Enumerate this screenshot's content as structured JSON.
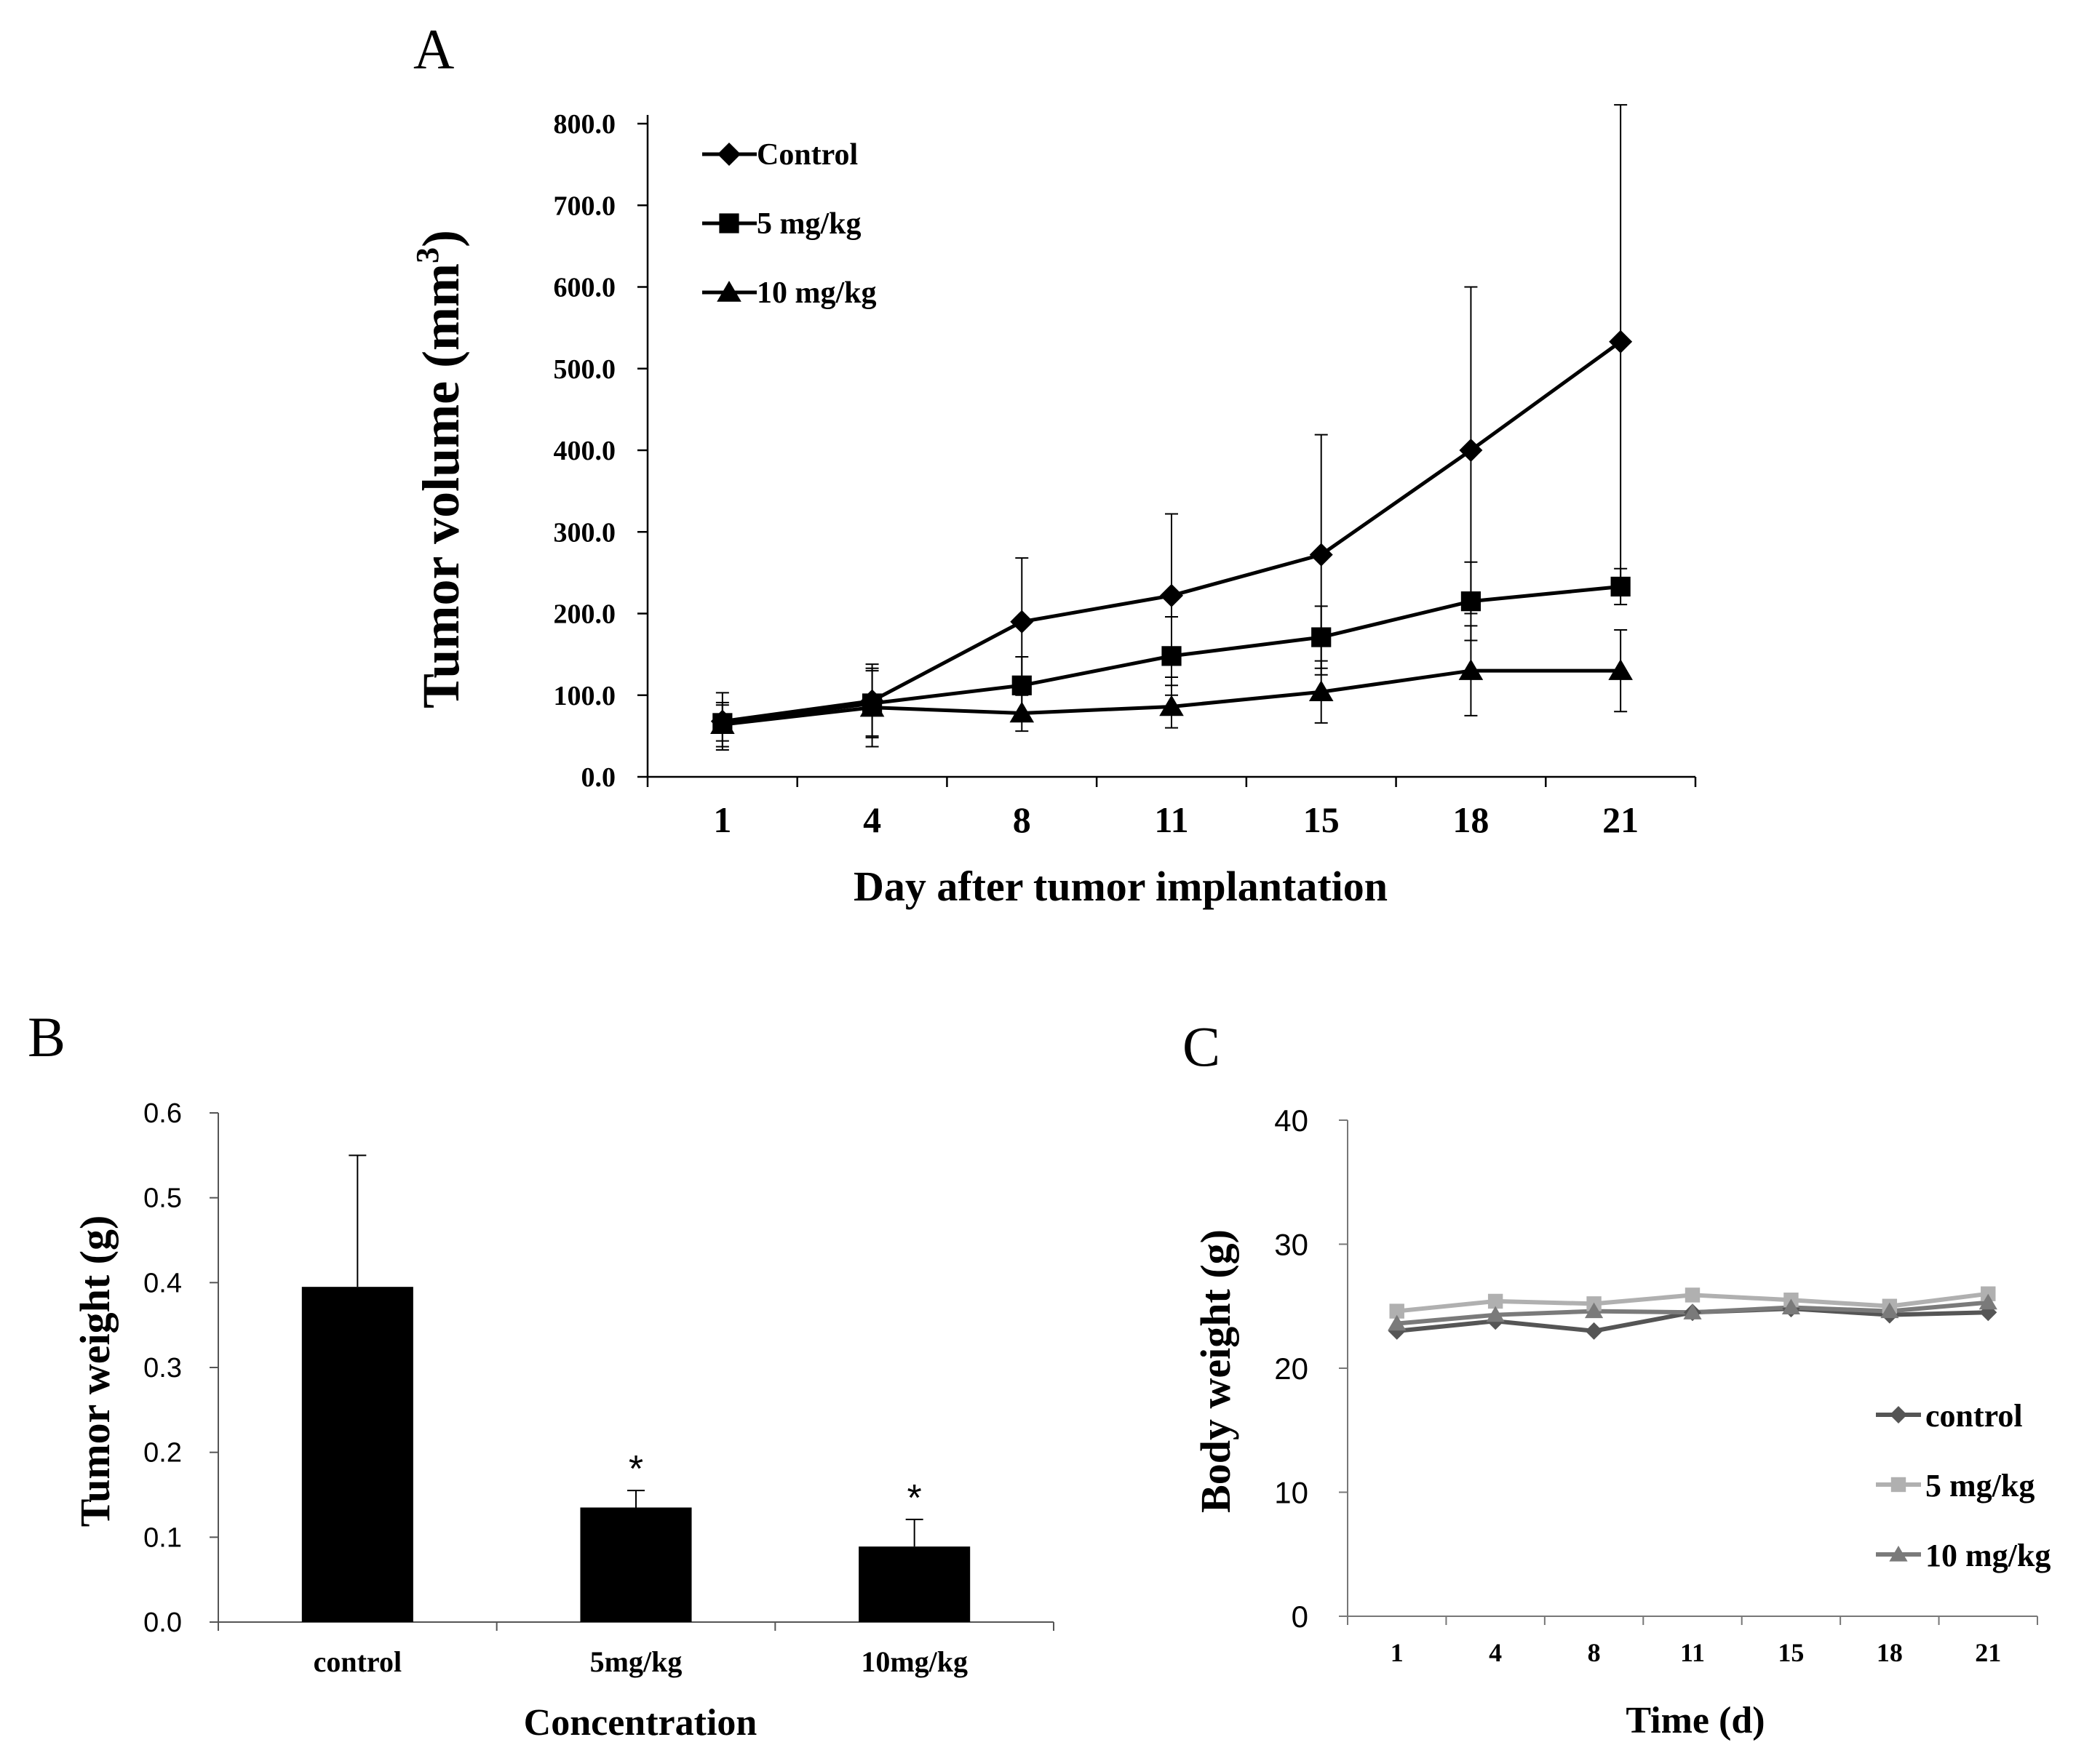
{
  "chart_data": [
    {
      "id": "A",
      "panel_label": "A",
      "type": "line",
      "xlabel": "Day after tumor implantation",
      "ylabel": "Tumor volume (mm",
      "ylabel_sup": "3",
      "ylabel_close": ")",
      "categories": [
        "1",
        "4",
        "8",
        "11",
        "15",
        "18",
        "21"
      ],
      "ylim": [
        0,
        800
      ],
      "yticks": [
        0,
        100,
        200,
        300,
        400,
        500,
        600,
        700,
        800
      ],
      "ytick_labels": [
        "0.0",
        "100.0",
        "200.0",
        "300.0",
        "400.0",
        "500.0",
        "600.0",
        "700.0",
        "800.0"
      ],
      "legend_position": "top-left",
      "series": [
        {
          "name": "Control",
          "marker": "diamond",
          "color": "#000000",
          "values": [
            68,
            93,
            190,
            222,
            272,
            400,
            533
          ],
          "errors": [
            35,
            45,
            78,
            100,
            147,
            200,
            290
          ]
        },
        {
          "name": "5 mg/kg",
          "marker": "square",
          "color": "#000000",
          "values": [
            66,
            90,
            112,
            148,
            171,
            215,
            233
          ],
          "errors": [
            22,
            40,
            35,
            48,
            38,
            48,
            22
          ]
        },
        {
          "name": "10 mg/kg",
          "marker": "triangle",
          "color": "#000000",
          "values": [
            64,
            85,
            78,
            86,
            104,
            130,
            130
          ],
          "errors": [
            27,
            48,
            22,
            26,
            38,
            55,
            50
          ]
        }
      ]
    },
    {
      "id": "B",
      "panel_label": "B",
      "type": "bar",
      "xlabel": "Concentration",
      "ylabel": "Tumor weight (g)",
      "categories": [
        "control",
        "5mg/kg",
        "10mg/kg"
      ],
      "values": [
        0.395,
        0.135,
        0.089
      ],
      "errors": [
        0.155,
        0.02,
        0.032
      ],
      "annotations": [
        "",
        "*",
        "*"
      ],
      "ylim": [
        0,
        0.6
      ],
      "yticks": [
        0,
        0.1,
        0.2,
        0.3,
        0.4,
        0.5,
        0.6
      ],
      "ytick_labels": [
        "0.0",
        "0.1",
        "0.2",
        "0.3",
        "0.4",
        "0.5",
        "0.6"
      ],
      "color": "#000000"
    },
    {
      "id": "C",
      "panel_label": "C",
      "type": "line",
      "xlabel": "Time (d)",
      "ylabel": "Body weight (g)",
      "categories": [
        "1",
        "4",
        "8",
        "11",
        "15",
        "18",
        "21"
      ],
      "ylim": [
        0,
        40
      ],
      "yticks": [
        0,
        10,
        20,
        30,
        40
      ],
      "ytick_labels": [
        "0",
        "10",
        "20",
        "30",
        "40"
      ],
      "legend_position": "bottom-right",
      "series": [
        {
          "name": "control",
          "marker": "diamond",
          "color": "#555555",
          "values": [
            23.0,
            23.8,
            23.0,
            24.5,
            24.8,
            24.3,
            24.5
          ]
        },
        {
          "name": "5 mg/kg",
          "marker": "square",
          "color": "#b0b0b0",
          "values": [
            24.6,
            25.4,
            25.2,
            25.9,
            25.5,
            25.0,
            26.0
          ]
        },
        {
          "name": "10 mg/kg",
          "marker": "triangle",
          "color": "#7a7a7a",
          "values": [
            23.6,
            24.3,
            24.6,
            24.5,
            24.9,
            24.6,
            25.3
          ]
        }
      ]
    }
  ]
}
